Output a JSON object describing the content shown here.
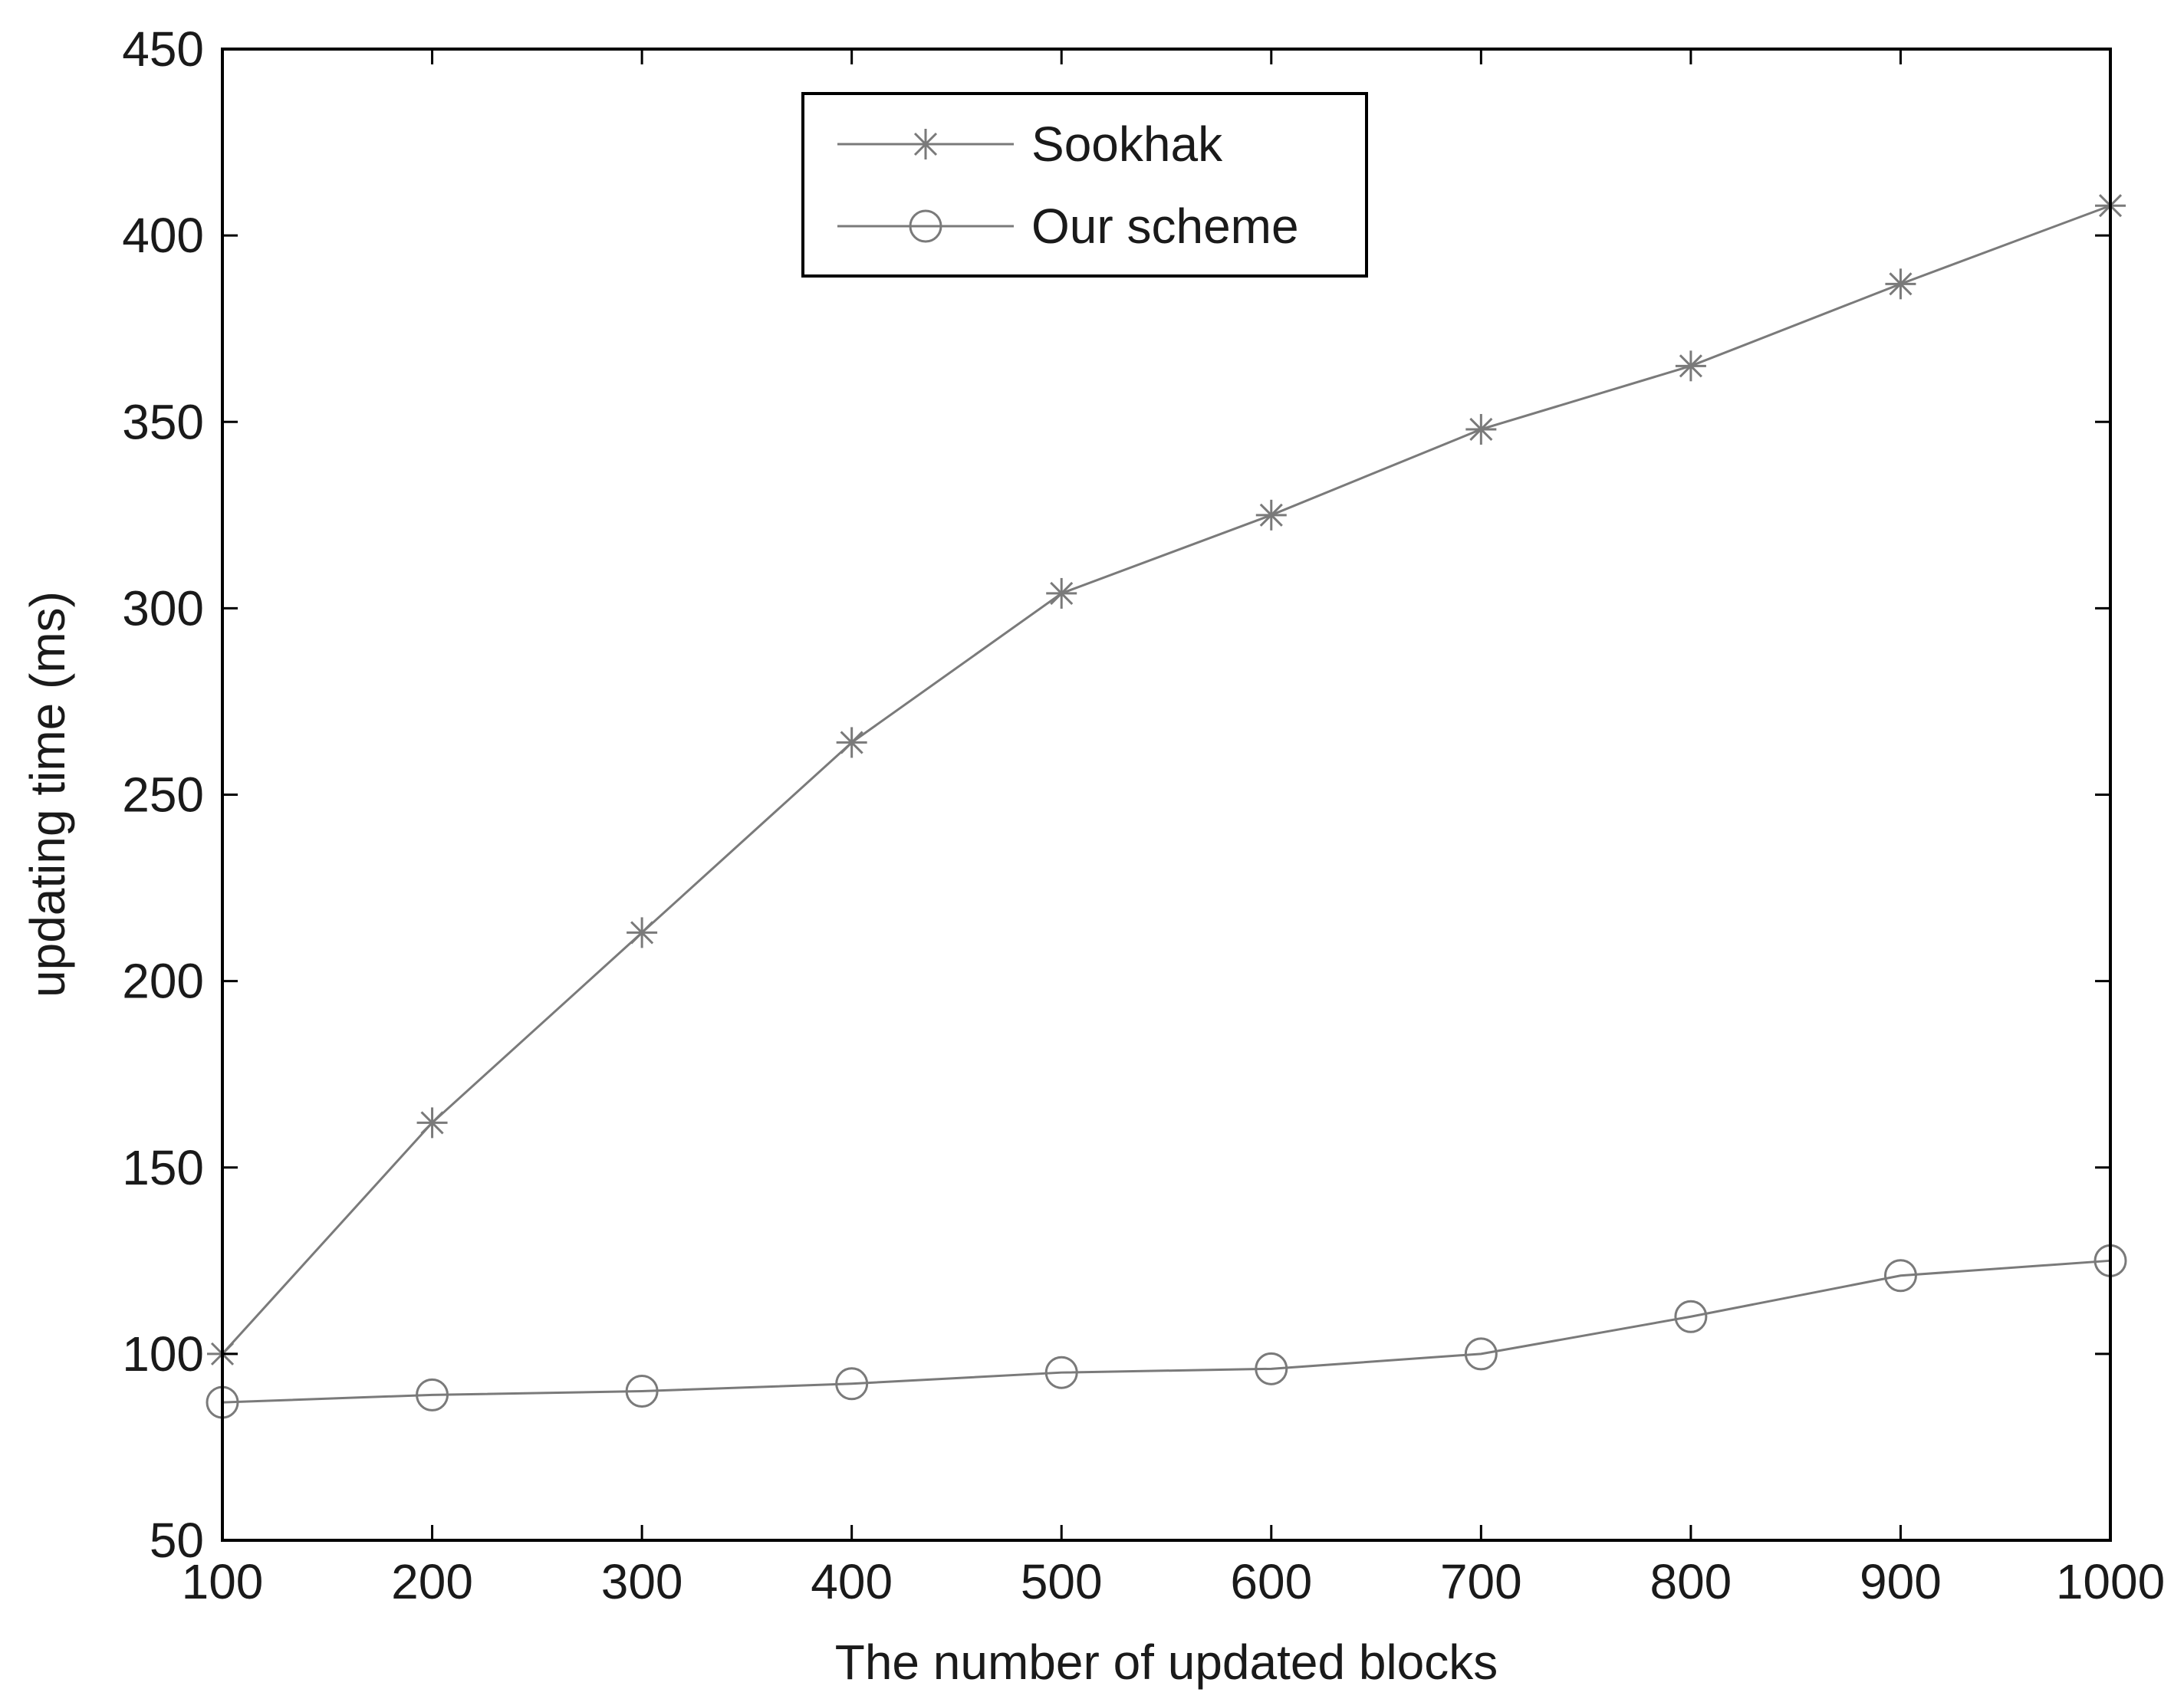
{
  "chart_data": {
    "type": "line",
    "title": "",
    "xlabel": "The number of updated blocks",
    "ylabel": "updating time (ms)",
    "x": [
      100,
      200,
      300,
      400,
      500,
      600,
      700,
      800,
      900,
      1000
    ],
    "xlim": [
      100,
      1000
    ],
    "ylim": [
      50,
      450
    ],
    "xticks": [
      100,
      200,
      300,
      400,
      500,
      600,
      700,
      800,
      900,
      1000
    ],
    "yticks": [
      50,
      100,
      150,
      200,
      250,
      300,
      350,
      400,
      450
    ],
    "grid": false,
    "legend_position": "top-center",
    "series": [
      {
        "name": "Sookhak",
        "marker": "star",
        "color": "#7a7a7a",
        "values": [
          100,
          162,
          213,
          264,
          304,
          325,
          348,
          365,
          387,
          408
        ]
      },
      {
        "name": "Our scheme",
        "marker": "circle",
        "color": "#7a7a7a",
        "values": [
          87,
          89,
          90,
          92,
          95,
          96,
          100,
          110,
          121,
          125
        ]
      }
    ]
  }
}
